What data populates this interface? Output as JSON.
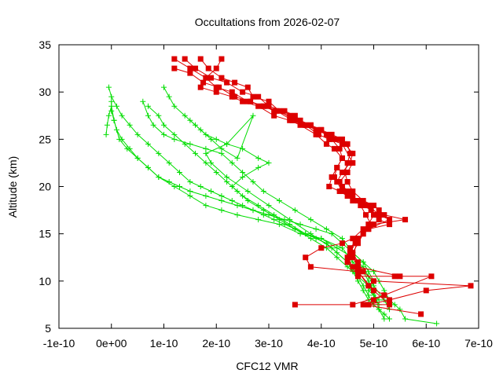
{
  "chart_data": {
    "type": "scatter",
    "title": "Occultations from 2026-02-07",
    "xlabel": "CFC12 VMR",
    "ylabel": "Altitude (km)",
    "xlim": [
      -1e-10,
      7e-10
    ],
    "ylim": [
      5,
      35
    ],
    "grid": false,
    "legend": "none",
    "x_ticks": [
      -1e-10,
      0,
      1e-10,
      2e-10,
      3e-10,
      4e-10,
      5e-10,
      6e-10,
      7e-10
    ],
    "x_tick_labels": [
      "-1e-10",
      "0e+00",
      "1e-10",
      "2e-10",
      "3e-10",
      "4e-10",
      "5e-10",
      "6e-10",
      "7e-10"
    ],
    "y_ticks": [
      5,
      10,
      15,
      20,
      25,
      30,
      35
    ],
    "y_tick_labels": [
      "5",
      "10",
      "15",
      "20",
      "25",
      "30",
      "35"
    ],
    "series": [
      {
        "name": "green-1",
        "color": "#00dd00",
        "marker": "plus",
        "x": [
          -5e-12,
          0.0,
          1e-11,
          2e-11,
          3.5e-11,
          5e-11,
          7e-11,
          9e-11,
          1.1e-10,
          1.3e-10,
          1.5e-10,
          1.7e-10,
          1.9e-10,
          2.1e-10,
          2.3e-10,
          2.5e-10,
          2.7e-10,
          2.9e-10,
          3.1e-10,
          3.3e-10,
          3.5e-10,
          3.7e-10,
          3.9e-10,
          4.1e-10,
          4.3e-10,
          4.5e-10,
          4.6e-10,
          4.7e-10,
          4.8e-10,
          4.9e-10,
          5.1e-10,
          5.2e-10
        ],
        "y": [
          30.5,
          29.5,
          28.5,
          27.5,
          26.5,
          25.5,
          24.5,
          23.5,
          22.5,
          21.5,
          20.5,
          20.0,
          19.5,
          19.0,
          18.5,
          18.0,
          17.5,
          17.0,
          16.5,
          16.0,
          15.5,
          15.0,
          14.5,
          14.0,
          13.0,
          12.0,
          11.0,
          10.0,
          9.0,
          8.0,
          7.0,
          6.0
        ]
      },
      {
        "name": "green-2",
        "color": "#00dd00",
        "marker": "plus",
        "x": [
          0.0,
          0.0,
          5e-12,
          1e-11,
          2e-11,
          3.5e-11,
          5e-11,
          7e-11,
          9e-11,
          1.1e-10,
          1.3e-10,
          1.5e-10,
          1.8e-10,
          2.1e-10,
          2.4e-10,
          2.7e-10,
          3e-10,
          3.3e-10,
          3.6e-10,
          3.9e-10,
          4.2e-10,
          4.4e-10,
          4.6e-10,
          4.8e-10,
          5e-10,
          5.1e-10,
          5.2e-10,
          5.3e-10,
          5.4e-10,
          5.5e-10,
          5.6e-10,
          6.2e-10
        ],
        "y": [
          29.0,
          28.0,
          27.0,
          26.0,
          25.0,
          24.0,
          23.0,
          22.0,
          21.0,
          20.5,
          20.0,
          19.5,
          19.0,
          18.5,
          18.0,
          17.5,
          17.0,
          16.5,
          16.0,
          15.5,
          15.0,
          14.0,
          13.0,
          12.0,
          11.0,
          10.0,
          9.0,
          8.0,
          7.5,
          7.0,
          6.0,
          5.5
        ]
      },
      {
        "name": "green-3",
        "color": "#00dd00",
        "marker": "plus",
        "x": [
          -1e-11,
          -8e-12,
          -5e-12,
          0.0,
          5e-12,
          1.5e-11,
          3e-11,
          5e-11,
          7e-11,
          9e-11,
          1.2e-10,
          1.5e-10,
          1.8e-10,
          2.1e-10,
          2.4e-10,
          2.8e-10,
          3.2e-10,
          3.6e-10,
          4e-10,
          4.4e-10,
          4.6e-10,
          4.8e-10,
          4.9e-10,
          5e-10,
          5.05e-10,
          5.1e-10,
          5.2e-10,
          5.3e-10
        ],
        "y": [
          25.5,
          26.5,
          27.5,
          28.5,
          27.0,
          25.0,
          24.0,
          23.0,
          22.0,
          21.0,
          20.0,
          19.0,
          18.0,
          17.5,
          17.0,
          16.5,
          16.0,
          15.0,
          14.5,
          13.5,
          12.0,
          11.0,
          10.0,
          9.0,
          8.0,
          7.0,
          6.5,
          6.0
        ]
      },
      {
        "name": "green-4",
        "color": "#00dd00",
        "marker": "plus",
        "x": [
          6e-11,
          7e-11,
          8e-11,
          1e-10,
          1.2e-10,
          1.5e-10,
          1.8e-10,
          2.1e-10,
          2.3e-10,
          2.5e-10,
          2.7e-10,
          2.9e-10,
          3.2e-10,
          3.5e-10,
          3.8e-10,
          4.1e-10,
          4.4e-10,
          4.6e-10,
          4.8e-10,
          4.9e-10,
          5e-10,
          4.9e-10,
          5.1e-10
        ],
        "y": [
          29.0,
          27.5,
          26.5,
          25.5,
          25.0,
          24.5,
          24.0,
          23.5,
          22.5,
          21.5,
          20.5,
          19.5,
          18.5,
          17.5,
          16.5,
          15.5,
          14.5,
          13.0,
          12.0,
          11.0,
          10.0,
          9.0,
          8.0
        ]
      },
      {
        "name": "green-5",
        "color": "#00dd00",
        "marker": "plus",
        "x": [
          1e-10,
          1.1e-10,
          1.2e-10,
          1.4e-10,
          1.6e-10,
          1.8e-10,
          2e-10,
          2.2e-10,
          2.5e-10,
          2.8e-10,
          3e-10,
          2.8e-10,
          2.5e-10,
          2.3e-10,
          2.5e-10,
          2.8e-10,
          3.1e-10,
          3.4e-10,
          3.7e-10,
          4e-10,
          4.3e-10,
          4.6e-10,
          4.8e-10,
          4.9e-10,
          5e-10,
          5.2e-10,
          5.3e-10
        ],
        "y": [
          30.5,
          29.5,
          28.5,
          27.5,
          26.5,
          25.5,
          25.0,
          24.5,
          24.0,
          23.0,
          22.5,
          22.0,
          21.0,
          20.0,
          19.0,
          18.0,
          17.0,
          16.0,
          15.0,
          14.5,
          13.5,
          12.5,
          11.5,
          10.5,
          9.5,
          8.0,
          7.0
        ]
      },
      {
        "name": "green-6",
        "color": "#00dd00",
        "marker": "plus",
        "x": [
          7e-11,
          9e-11,
          1e-10,
          1.2e-10,
          1.4e-10,
          1.6e-10,
          1.8e-10,
          2e-10,
          2.2e-10,
          2.4e-10,
          2.6e-10,
          2.9e-10,
          3.2e-10,
          3.5e-10,
          3.8e-10,
          4.1e-10,
          4.3e-10,
          4.5e-10,
          4.7e-10,
          4.8e-10,
          4.9e-10,
          5e-10
        ],
        "y": [
          28.5,
          27.5,
          26.5,
          25.5,
          24.5,
          23.5,
          22.5,
          21.5,
          20.5,
          19.5,
          18.5,
          17.5,
          16.5,
          15.5,
          14.5,
          13.5,
          12.5,
          11.5,
          10.5,
          9.5,
          8.5,
          7.5
        ]
      },
      {
        "name": "green-7",
        "color": "#00dd00",
        "marker": "plus",
        "x": [
          1.5e-10,
          1.7e-10,
          1.9e-10,
          2.1e-10,
          2.4e-10,
          2.7e-10,
          2.2e-10,
          1.8e-10,
          1.9e-10,
          2.2e-10,
          2.6e-10,
          3e-10,
          3.4e-10,
          3.8e-10,
          4.2e-10,
          4.5e-10,
          4.7e-10,
          4.9e-10,
          5e-10,
          5.1e-10
        ],
        "y": [
          27.0,
          26.0,
          25.0,
          24.0,
          23.0,
          27.5,
          24.5,
          23.5,
          22.5,
          21.0,
          19.5,
          18.0,
          16.5,
          15.0,
          13.5,
          12.0,
          10.5,
          9.5,
          8.5,
          7.5
        ]
      },
      {
        "name": "red-1",
        "color": "#dd0000",
        "marker": "square",
        "x": [
          1.2e-10,
          1.5e-10,
          1.8e-10,
          2e-10,
          2.3e-10,
          2.6e-10,
          2.9e-10,
          3.1e-10,
          3.4e-10,
          3.6e-10,
          3.8e-10,
          4e-10,
          4.2e-10,
          4.4e-10,
          4.5e-10,
          4.55e-10,
          4.5e-10,
          4.45e-10,
          4.5e-10,
          4.6e-10,
          4.8e-10,
          5e-10,
          5.1e-10,
          5.2e-10,
          5.6e-10,
          5e-10,
          4.8e-10,
          4.7e-10,
          4.6e-10,
          4.7e-10,
          4.8e-10,
          5e-10,
          6.85e-10,
          6e-10,
          5.3e-10,
          4.9e-10
        ],
        "y": [
          33.5,
          32.5,
          31.5,
          30.5,
          30.0,
          29.0,
          28.5,
          28.0,
          27.5,
          27.0,
          26.5,
          26.0,
          25.5,
          25.0,
          24.5,
          23.5,
          22.5,
          21.5,
          20.5,
          19.5,
          18.5,
          18.0,
          17.5,
          17.0,
          16.5,
          16.0,
          15.0,
          14.0,
          13.0,
          12.0,
          11.0,
          10.0,
          9.5,
          9.0,
          8.0,
          7.5
        ]
      },
      {
        "name": "red-2",
        "color": "#dd0000",
        "marker": "square",
        "x": [
          1.4e-10,
          1.6e-10,
          1.9e-10,
          2.2e-10,
          2.5e-10,
          2.8e-10,
          3e-10,
          3.3e-10,
          3.5e-10,
          3.7e-10,
          3.9e-10,
          4.1e-10,
          4.3e-10,
          4.45e-10,
          4.6e-10,
          4.55e-10,
          4.4e-10,
          4.3e-10,
          4.4e-10,
          4.6e-10,
          4.8e-10,
          4.95e-10,
          5e-10,
          5.1e-10,
          5.3e-10,
          4.9e-10,
          4.7e-10,
          4.55e-10,
          4.5e-10,
          4.6e-10,
          4.7e-10,
          5.4e-10,
          6.1e-10,
          5.2e-10,
          4.6e-10,
          3.5e-10
        ],
        "y": [
          33.5,
          32.5,
          31.5,
          31.0,
          30.0,
          29.5,
          28.5,
          28.0,
          27.5,
          26.5,
          26.0,
          25.5,
          25.0,
          24.5,
          23.5,
          22.5,
          21.5,
          20.5,
          19.5,
          18.5,
          18.0,
          17.5,
          17.0,
          16.5,
          16.0,
          15.5,
          14.5,
          13.5,
          12.5,
          11.5,
          10.5,
          10.5,
          10.5,
          8.5,
          7.5,
          7.5
        ]
      },
      {
        "name": "red-3",
        "color": "#dd0000",
        "marker": "square",
        "x": [
          1.7e-10,
          1.85e-10,
          2.1e-10,
          2.35e-10,
          2.6e-10,
          2.7e-10,
          3e-10,
          3.2e-10,
          3.5e-10,
          3.8e-10,
          4e-10,
          4.2e-10,
          4.35e-10,
          4.4e-10,
          4.3e-10,
          4.2e-10,
          4.15e-10,
          4.35e-10,
          4.5e-10,
          4.7e-10,
          4.9e-10,
          5e-10,
          4.9e-10,
          4.8e-10,
          4.6e-10,
          4.4e-10,
          4e-10,
          3.7e-10,
          3.8e-10,
          4.7e-10,
          5e-10,
          5.3e-10,
          4.8e-10,
          5.9e-10
        ],
        "y": [
          33.5,
          32.5,
          31.5,
          31.0,
          30.5,
          29.5,
          29.0,
          28.0,
          27.0,
          26.5,
          26.0,
          25.0,
          24.0,
          23.0,
          22.0,
          21.0,
          20.0,
          19.5,
          19.0,
          18.5,
          18.0,
          17.0,
          16.0,
          15.5,
          14.5,
          14.0,
          13.5,
          12.5,
          11.5,
          11.0,
          9.0,
          7.5,
          7.5,
          6.5
        ]
      },
      {
        "name": "red-4",
        "color": "#dd0000",
        "marker": "square",
        "x": [
          2.1e-10,
          2e-10,
          1.8e-10,
          1.7e-10,
          2e-10,
          2.3e-10,
          2.5e-10,
          2.8e-10,
          3.1e-10,
          3.4e-10,
          3.6e-10,
          3.9e-10,
          4.1e-10,
          4.25e-10,
          4.4e-10,
          4.3e-10,
          4.25e-10,
          4.4e-10,
          4.6e-10,
          4.75e-10,
          4.85e-10,
          4.95e-10,
          4.8e-10,
          4.65e-10,
          4.55e-10,
          4.5e-10,
          4.7e-10,
          4.9e-10,
          5.2e-10,
          5e-10
        ],
        "y": [
          33.5,
          32.5,
          31.5,
          30.5,
          30.0,
          29.5,
          29.0,
          28.5,
          27.5,
          27.0,
          26.5,
          25.5,
          24.5,
          24.0,
          23.0,
          22.0,
          21.0,
          20.0,
          19.0,
          18.0,
          17.0,
          16.0,
          15.0,
          14.0,
          13.0,
          12.0,
          11.0,
          9.5,
          8.5,
          8.0
        ]
      },
      {
        "name": "red-5",
        "color": "#dd0000",
        "marker": "square",
        "x": [
          1.2e-10,
          1.5e-10,
          1.75e-10,
          2.05e-10,
          2.35e-10,
          2.65e-10,
          2.9e-10,
          3.15e-10,
          3.45e-10,
          3.7e-10,
          3.95e-10,
          4.15e-10,
          4.4e-10,
          4.6e-10,
          4.5e-10,
          4.35e-10,
          4.5e-10,
          4.7e-10,
          4.9e-10,
          5.1e-10,
          5.3e-10,
          4.9e-10,
          4.7e-10,
          4.6e-10,
          4.7e-10,
          5.5e-10
        ],
        "y": [
          32.5,
          32.0,
          31.0,
          30.5,
          29.5,
          29.0,
          28.5,
          28.0,
          27.0,
          26.5,
          25.5,
          25.0,
          24.5,
          22.5,
          21.5,
          20.5,
          19.5,
          18.5,
          18.0,
          17.0,
          16.5,
          15.5,
          14.5,
          12.5,
          11.5,
          10.5
        ]
      }
    ]
  }
}
